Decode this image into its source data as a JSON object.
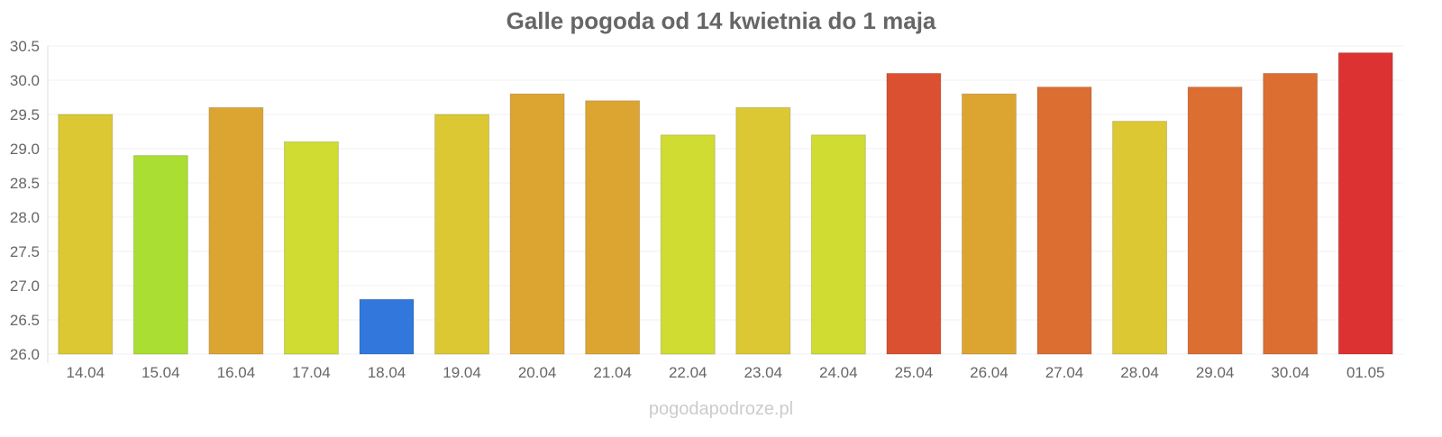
{
  "chart_data": {
    "type": "bar",
    "title": "Galle pogoda od 14 kwietnia do 1 maja",
    "xlabel": "",
    "ylabel": "",
    "ylim": [
      26.0,
      30.5
    ],
    "yticks": [
      "26.0",
      "26.5",
      "27.0",
      "27.5",
      "28.0",
      "28.5",
      "29.0",
      "29.5",
      "30.0",
      "30.5"
    ],
    "grid": true,
    "categories": [
      "14.04",
      "15.04",
      "16.04",
      "17.04",
      "18.04",
      "19.04",
      "20.04",
      "21.04",
      "22.04",
      "23.04",
      "24.04",
      "25.04",
      "26.04",
      "27.04",
      "28.04",
      "29.04",
      "30.04",
      "01.05"
    ],
    "values": [
      29.5,
      28.9,
      29.6,
      29.1,
      26.8,
      29.5,
      29.8,
      29.7,
      29.2,
      29.6,
      29.2,
      30.1,
      29.8,
      29.9,
      29.4,
      29.9,
      30.1,
      30.4
    ],
    "colors": [
      "#dcc832",
      "#aade32",
      "#dca532",
      "#d0dc32",
      "#3278dc",
      "#dcc832",
      "#dca532",
      "#dca532",
      "#d0dc32",
      "#dcc832",
      "#d0dc32",
      "#dc5032",
      "#dca532",
      "#dc6e32",
      "#dcc832",
      "#dc6e32",
      "#dc6e32",
      "#dc3232"
    ]
  },
  "watermark": "pogodapodroze.pl"
}
